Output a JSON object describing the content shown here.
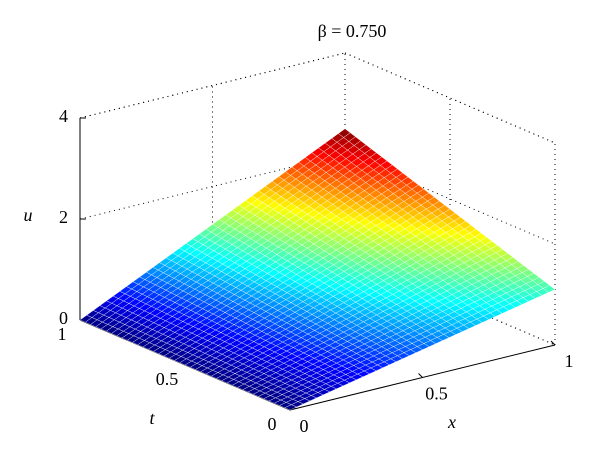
{
  "chart_data": {
    "type": "surface",
    "title": "β = 0.750",
    "xlabel": "x",
    "ylabel": "t",
    "zlabel": "u",
    "x": [
      0,
      0.2,
      0.4,
      0.6,
      0.8,
      1
    ],
    "y": [
      0,
      0.2,
      0.4,
      0.6,
      0.8,
      1
    ],
    "z": [
      [
        0,
        0.22,
        0.44,
        0.66,
        0.88,
        1.1
      ],
      [
        0,
        0.276,
        0.552,
        0.828,
        1.104,
        1.38
      ],
      [
        0,
        0.332,
        0.664,
        0.996,
        1.328,
        1.66
      ],
      [
        0,
        0.388,
        0.776,
        1.164,
        1.552,
        1.94
      ],
      [
        0,
        0.444,
        0.888,
        1.332,
        1.776,
        2.22
      ],
      [
        0,
        0.5,
        1,
        1.5,
        2,
        2.5
      ]
    ],
    "xlim": [
      0,
      1
    ],
    "ylim": [
      0,
      1
    ],
    "zlim": [
      0,
      4
    ],
    "xticks": [
      0,
      0.5,
      1
    ],
    "yticks": [
      0,
      0.5,
      1
    ],
    "zticks": [
      0,
      2,
      4
    ],
    "colormap": "jet",
    "grid": true,
    "box": true
  }
}
